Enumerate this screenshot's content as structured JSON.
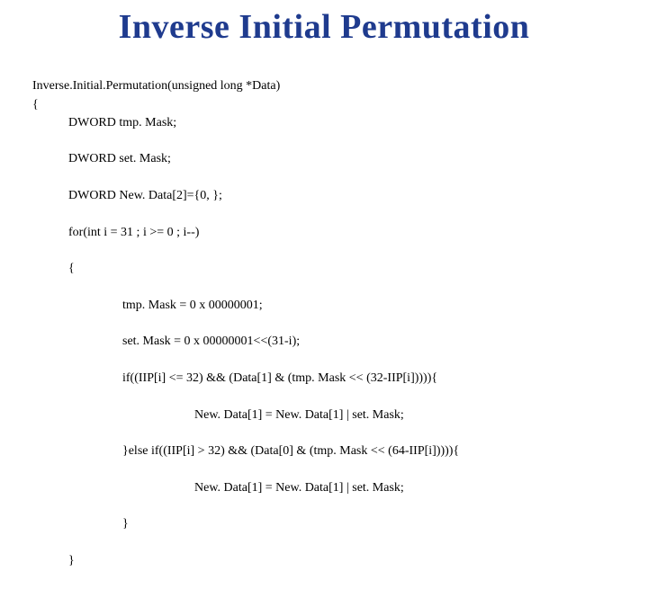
{
  "title": "Inverse Initial Permutation",
  "code": {
    "l1": "Inverse.Initial.Permutation(unsigned long *Data)",
    "l2": "{",
    "l3": "DWORD tmp. Mask;",
    "l4": "DWORD set. Mask;",
    "l5": "DWORD New. Data[2]={0, };",
    "l6": "for(int i = 31 ; i >= 0 ; i--)",
    "l7": "{",
    "l8": "tmp. Mask = 0 x 00000001;",
    "l9": "set. Mask = 0 x 00000001<<(31-i);",
    "l10": "if((IIP[i] <= 32) && (Data[1] & (tmp. Mask << (32-IIP[i])))){",
    "l11": "New. Data[1] = New. Data[1] | set. Mask;",
    "l12": "}else if((IIP[i] > 32) && (Data[0] & (tmp. Mask << (64-IIP[i])))){",
    "l13": "New. Data[1] = New. Data[1] | set. Mask;",
    "l14": "}",
    "l15": "}"
  },
  "colors": {
    "title": "#1f3b8e",
    "text": "#000000",
    "background": "#ffffff"
  },
  "font": {
    "title_size": 38,
    "code_size": 14,
    "family": "Times New Roman"
  }
}
